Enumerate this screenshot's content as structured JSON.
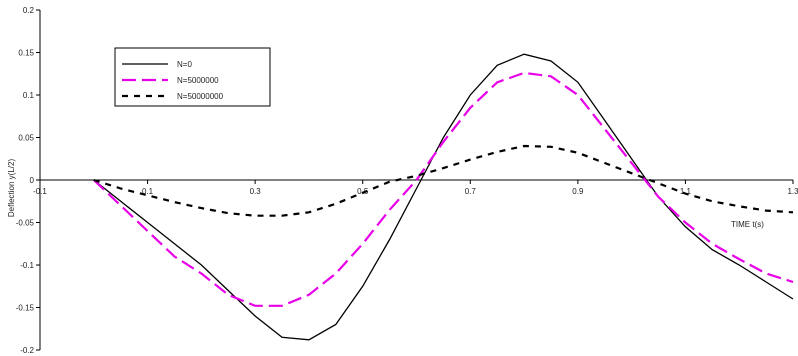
{
  "chart_data": {
    "type": "line",
    "xlabel": "TIME t(s)",
    "ylabel": "Deflection y(L/2)",
    "xlim": [
      -0.1,
      1.3
    ],
    "ylim": [
      -0.2,
      0.2
    ],
    "x_ticks": [
      "-0.1",
      "0.1",
      "0.3",
      "0.5",
      "0.7",
      "0.9",
      "1.1",
      "1.3"
    ],
    "y_ticks": [
      "0.2",
      "0.15",
      "0.1",
      "0.05",
      "0",
      "-0.05",
      "-0.1",
      "-0.15",
      "-0.2"
    ],
    "legend_position": "top-left",
    "series": [
      {
        "name": "N=0",
        "color": "#000000",
        "style": "solid",
        "x": [
          0.0,
          0.05,
          0.1,
          0.15,
          0.2,
          0.25,
          0.3,
          0.35,
          0.4,
          0.45,
          0.5,
          0.55,
          0.6,
          0.65,
          0.7,
          0.75,
          0.8,
          0.85,
          0.9,
          0.95,
          1.0,
          1.05,
          1.1,
          1.15,
          1.2,
          1.25,
          1.3
        ],
        "y": [
          0,
          -0.025,
          -0.05,
          -0.075,
          -0.1,
          -0.13,
          -0.16,
          -0.185,
          -0.188,
          -0.17,
          -0.125,
          -0.07,
          -0.01,
          0.05,
          0.1,
          0.135,
          0.148,
          0.14,
          0.115,
          0.07,
          0.025,
          -0.02,
          -0.055,
          -0.082,
          -0.1,
          -0.12,
          -0.14
        ]
      },
      {
        "name": "N=5000000",
        "color": "#e800e8",
        "style": "dashed",
        "x": [
          0.0,
          0.05,
          0.1,
          0.15,
          0.2,
          0.25,
          0.3,
          0.35,
          0.4,
          0.45,
          0.5,
          0.55,
          0.6,
          0.65,
          0.7,
          0.75,
          0.8,
          0.85,
          0.9,
          0.95,
          1.0,
          1.05,
          1.1,
          1.15,
          1.2,
          1.25,
          1.3
        ],
        "y": [
          0,
          -0.03,
          -0.06,
          -0.09,
          -0.11,
          -0.135,
          -0.148,
          -0.148,
          -0.135,
          -0.11,
          -0.075,
          -0.035,
          0.0,
          0.045,
          0.085,
          0.115,
          0.126,
          0.122,
          0.1,
          0.06,
          0.02,
          -0.02,
          -0.05,
          -0.075,
          -0.093,
          -0.11,
          -0.12
        ]
      },
      {
        "name": "N=50000000",
        "color": "#000000",
        "style": "dashed",
        "x": [
          0.0,
          0.05,
          0.1,
          0.15,
          0.2,
          0.25,
          0.3,
          0.35,
          0.4,
          0.45,
          0.5,
          0.55,
          0.6,
          0.65,
          0.7,
          0.75,
          0.8,
          0.85,
          0.9,
          0.95,
          1.0,
          1.05,
          1.1,
          1.15,
          1.2,
          1.25,
          1.3
        ],
        "y": [
          0,
          -0.01,
          -0.018,
          -0.026,
          -0.033,
          -0.039,
          -0.042,
          -0.042,
          -0.038,
          -0.028,
          -0.015,
          -0.002,
          0.005,
          0.014,
          0.024,
          0.033,
          0.04,
          0.039,
          0.032,
          0.02,
          0.008,
          -0.004,
          -0.016,
          -0.025,
          -0.031,
          -0.036,
          -0.038
        ]
      }
    ]
  }
}
